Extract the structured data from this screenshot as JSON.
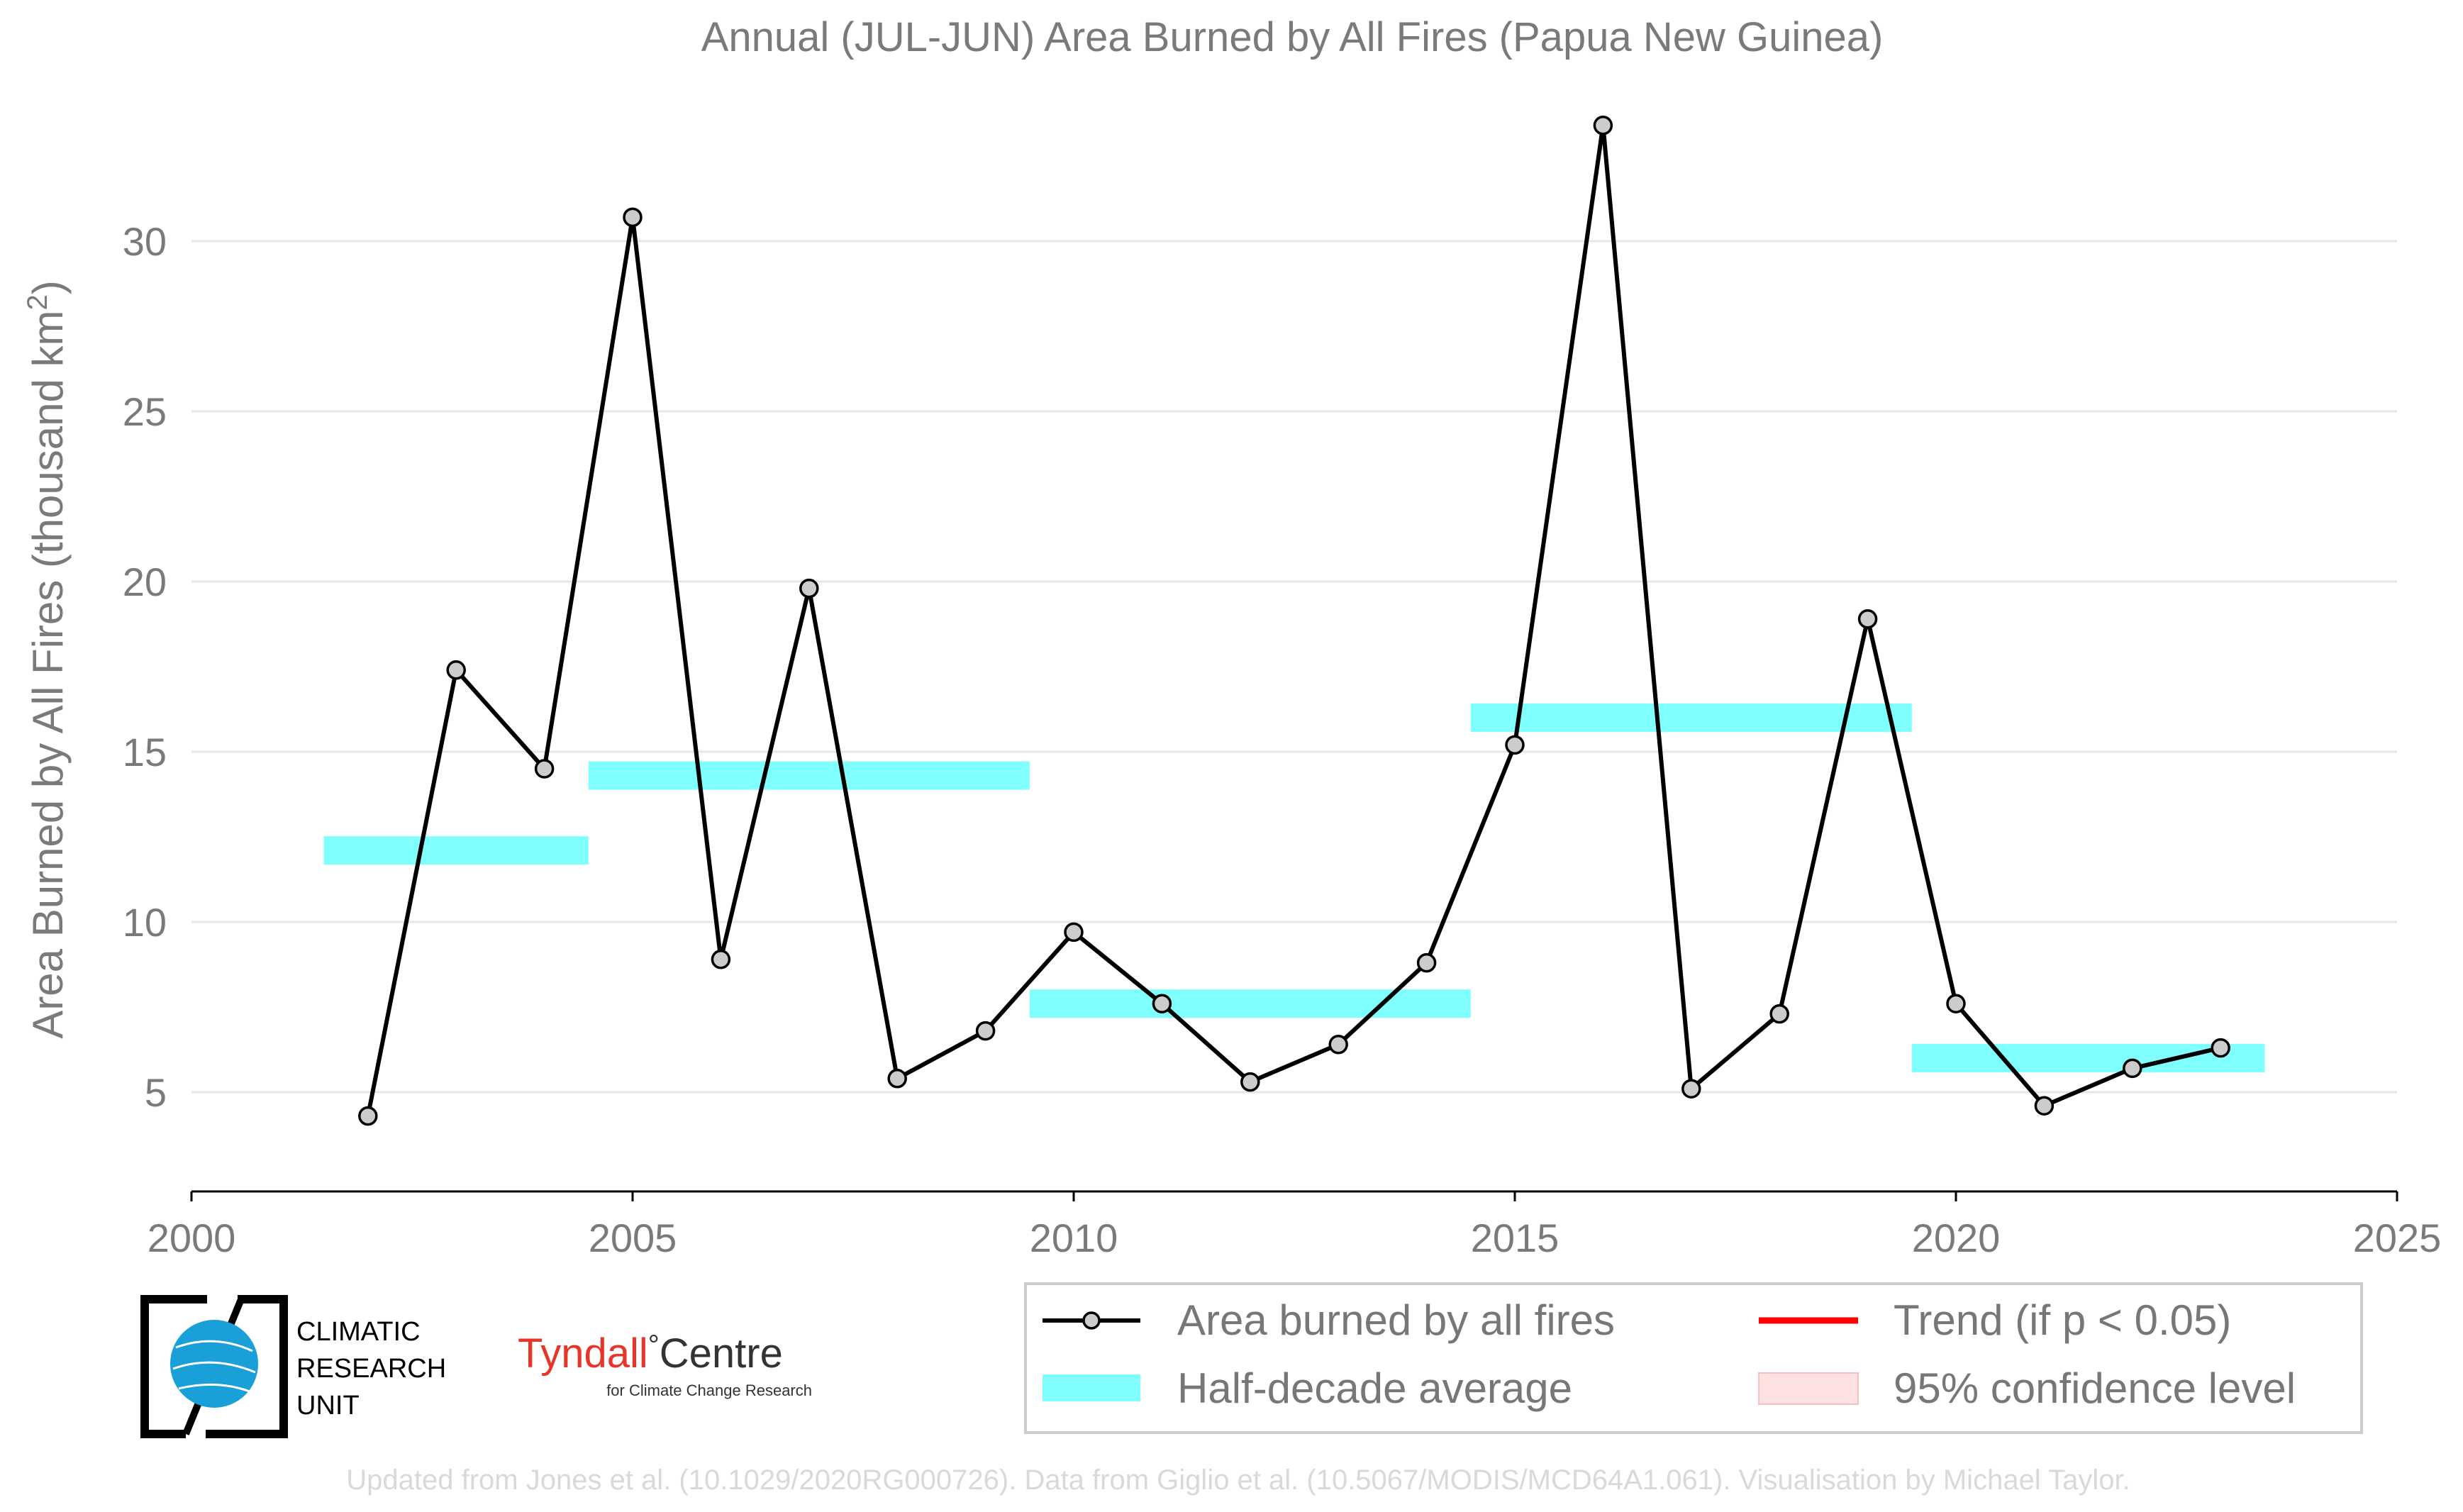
{
  "chart_data": {
    "type": "line",
    "title": "Annual (JUL-JUN) Area Burned by All Fires (Papua New Guinea)",
    "xlabel": "",
    "ylabel": "Area Burned by All Fires (thousand km",
    "ylabel_sup": "2",
    "ylabel_close": ")",
    "xlim": [
      2000,
      2025
    ],
    "ylim": [
      2,
      35.5
    ],
    "x_ticks": [
      2000,
      2005,
      2010,
      2015,
      2020,
      2025
    ],
    "y_ticks": [
      5,
      10,
      15,
      20,
      25,
      30
    ],
    "grid": "horizontal",
    "legend_position": "bottom-right",
    "series": [
      {
        "name": "Area burned by all fires",
        "x": [
          2002,
          2003,
          2004,
          2005,
          2006,
          2007,
          2008,
          2009,
          2010,
          2011,
          2012,
          2013,
          2014,
          2015,
          2016,
          2017,
          2018,
          2019,
          2020,
          2021,
          2022,
          2023
        ],
        "values": [
          4.3,
          17.4,
          14.5,
          30.7,
          8.9,
          19.8,
          5.4,
          6.8,
          9.7,
          7.6,
          5.3,
          6.4,
          8.8,
          15.2,
          33.4,
          5.1,
          7.3,
          18.9,
          7.6,
          4.6,
          5.7,
          6.3
        ],
        "color": "#000000",
        "marker_fill": "#cccccc"
      }
    ],
    "half_decade_averages": [
      {
        "x_start": 2001.5,
        "x_end": 2004.5,
        "value": 12.1
      },
      {
        "x_start": 2004.5,
        "x_end": 2009.5,
        "value": 14.3
      },
      {
        "x_start": 2009.5,
        "x_end": 2014.5,
        "value": 7.6
      },
      {
        "x_start": 2014.5,
        "x_end": 2019.5,
        "value": 16.0
      },
      {
        "x_start": 2019.5,
        "x_end": 2023.5,
        "value": 6.0
      }
    ],
    "half_decade_color": "#80ffff",
    "legend": [
      {
        "label": "Area burned by all fires",
        "kind": "line-marker",
        "color": "#000000"
      },
      {
        "label": "Trend (if p < 0.05)",
        "kind": "line",
        "color": "#ff0000"
      },
      {
        "label": "Half-decade average",
        "kind": "band",
        "color": "#80ffff"
      },
      {
        "label": "95% confidence level",
        "kind": "patch",
        "color": "#fde0e0"
      }
    ]
  },
  "logos": {
    "cru": [
      "CLIMATIC",
      "RESEARCH",
      "UNIT"
    ],
    "tyndall_name": "Tyndall",
    "tyndall_degree": "°",
    "tyndall_centre": "Centre",
    "tyndall_sub": "for Climate Change Research"
  },
  "footer": "Updated from Jones et al. (10.1029/2020RG000726). Data from Giglio et al. (10.5067/MODIS/MCD64A1.061). Visualisation by Michael Taylor."
}
